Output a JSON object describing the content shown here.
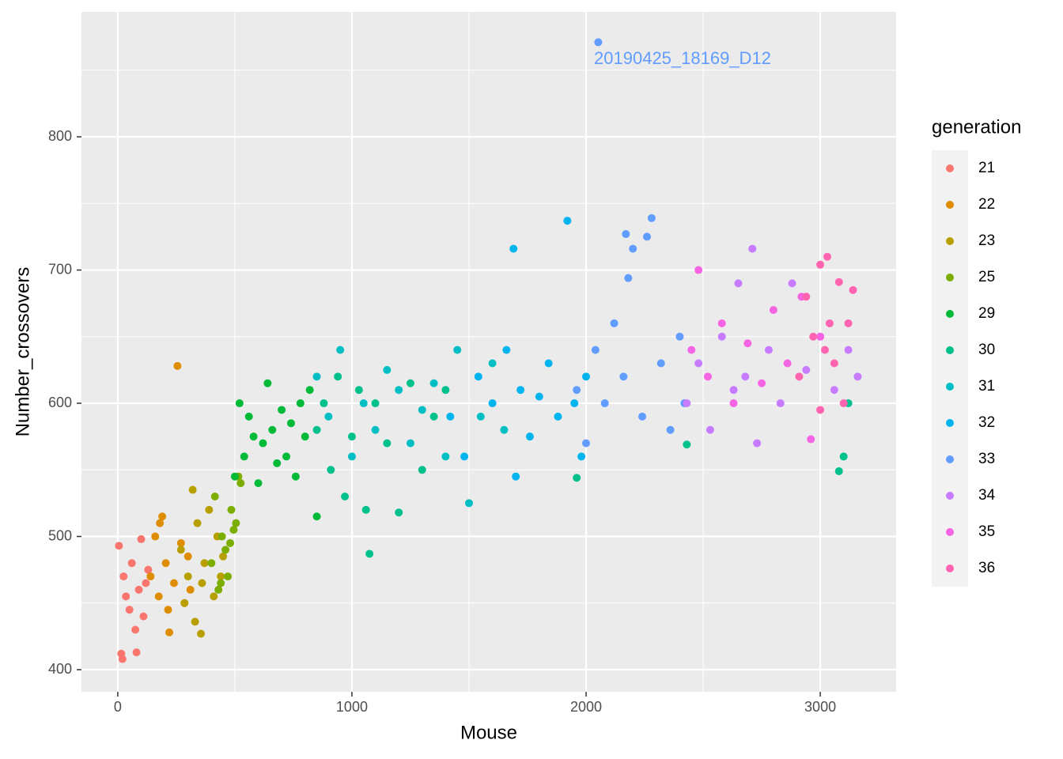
{
  "chart_data": {
    "type": "scatter",
    "x_label": "Mouse",
    "y_label": "Number_crossovers",
    "legend_title": "generation",
    "legend_position": "right",
    "grid": true,
    "xlim": [
      -155,
      3324
    ],
    "ylim": [
      383.4,
      893.8
    ],
    "xticks": [
      0,
      1000,
      2000,
      3000
    ],
    "yticks": [
      400,
      500,
      600,
      700,
      800
    ],
    "x_minor_grid": [
      500,
      1500,
      2500
    ],
    "y_minor_grid": [
      450,
      550,
      650,
      750,
      850
    ],
    "annotation": {
      "text": "20190425_18169_D12",
      "x": 2412,
      "y": 858,
      "color": "#619CFF"
    },
    "series": [
      {
        "name": "21",
        "color": "#F8766D",
        "x": [
          5,
          15,
          25,
          35,
          50,
          60,
          75,
          90,
          100,
          110,
          120,
          130,
          20,
          80
        ],
        "values": [
          493,
          412,
          470,
          455,
          445,
          480,
          430,
          460,
          498,
          440,
          465,
          475,
          408,
          413
        ]
      },
      {
        "name": "22",
        "color": "#DE8C00",
        "x": [
          140,
          160,
          175,
          190,
          205,
          220,
          240,
          255,
          270,
          285,
          300,
          310,
          180,
          215
        ],
        "values": [
          470,
          500,
          455,
          515,
          480,
          428,
          465,
          628,
          495,
          450,
          485,
          460,
          510,
          445
        ]
      },
      {
        "name": "23",
        "color": "#B79F00",
        "x": [
          270,
          285,
          300,
          320,
          340,
          355,
          370,
          390,
          410,
          425,
          440,
          450,
          330,
          360
        ],
        "values": [
          490,
          450,
          470,
          535,
          510,
          427,
          480,
          520,
          455,
          500,
          470,
          485,
          436,
          465
        ]
      },
      {
        "name": "25",
        "color": "#7CAE00",
        "x": [
          400,
          415,
          430,
          445,
          460,
          470,
          485,
          495,
          505,
          515,
          525,
          440,
          480
        ],
        "values": [
          480,
          530,
          460,
          500,
          490,
          470,
          520,
          505,
          510,
          545,
          540,
          465,
          495
        ]
      },
      {
        "name": "29",
        "color": "#00BA38",
        "x": [
          500,
          520,
          540,
          560,
          580,
          600,
          620,
          640,
          660,
          680,
          700,
          720,
          740,
          760,
          780,
          800,
          820,
          850
        ],
        "values": [
          545,
          600,
          560,
          590,
          575,
          540,
          570,
          615,
          580,
          555,
          595,
          560,
          585,
          545,
          600,
          575,
          610,
          515
        ]
      },
      {
        "name": "30",
        "color": "#00C08B",
        "x": [
          850,
          880,
          910,
          940,
          970,
          1000,
          1030,
          1060,
          1075,
          1100,
          1150,
          1200,
          1250,
          1300,
          1350,
          1400,
          1960,
          2430,
          3080,
          3100,
          3120
        ],
        "values": [
          580,
          600,
          550,
          620,
          530,
          575,
          610,
          520,
          487,
          600,
          570,
          518,
          615,
          550,
          590,
          610,
          544,
          569,
          549,
          560,
          600
        ]
      },
      {
        "name": "31",
        "color": "#00BFC4",
        "x": [
          850,
          900,
          950,
          1000,
          1050,
          1100,
          1150,
          1200,
          1250,
          1300,
          1350,
          1400,
          1450,
          1500,
          1550,
          1600,
          1650
        ],
        "values": [
          620,
          590,
          640,
          560,
          600,
          580,
          625,
          610,
          570,
          595,
          615,
          560,
          640,
          525,
          590,
          630,
          580
        ]
      },
      {
        "name": "32",
        "color": "#00B4F0",
        "x": [
          1420,
          1480,
          1540,
          1600,
          1660,
          1690,
          1720,
          1760,
          1800,
          1840,
          1880,
          1920,
          1950,
          1980,
          2000,
          1700
        ],
        "values": [
          590,
          560,
          620,
          600,
          640,
          716,
          610,
          575,
          605,
          630,
          590,
          737,
          600,
          560,
          620,
          545
        ]
      },
      {
        "name": "33",
        "color": "#619CFF",
        "x": [
          1960,
          2000,
          2040,
          2052,
          2080,
          2120,
          2160,
          2170,
          2200,
          2240,
          2260,
          2280,
          2320,
          2360,
          2400,
          2420,
          2180
        ],
        "values": [
          610,
          570,
          640,
          871,
          600,
          660,
          620,
          727,
          716,
          590,
          725,
          739,
          630,
          580,
          650,
          600,
          694
        ]
      },
      {
        "name": "34",
        "color": "#C77CFF",
        "x": [
          2430,
          2480,
          2530,
          2580,
          2630,
          2680,
          2710,
          2730,
          2780,
          2830,
          2880,
          2940,
          3000,
          3060,
          3120,
          3160,
          2650
        ],
        "values": [
          600,
          630,
          580,
          650,
          610,
          620,
          716,
          570,
          640,
          600,
          690,
          625,
          650,
          610,
          640,
          620,
          690
        ]
      },
      {
        "name": "35",
        "color": "#F564E3",
        "x": [
          2450,
          2480,
          2520,
          2580,
          2630,
          2690,
          2750,
          2800,
          2860,
          2920,
          2960,
          3000
        ],
        "values": [
          640,
          700,
          620,
          660,
          600,
          645,
          615,
          670,
          630,
          680,
          573,
          650
        ]
      },
      {
        "name": "36",
        "color": "#FF64B0",
        "x": [
          2910,
          2940,
          2970,
          3000,
          3020,
          3040,
          3060,
          3080,
          3100,
          3120,
          3140,
          3000,
          3030
        ],
        "values": [
          620,
          680,
          650,
          704,
          640,
          660,
          630,
          691,
          600,
          660,
          685,
          595,
          710
        ]
      }
    ]
  }
}
